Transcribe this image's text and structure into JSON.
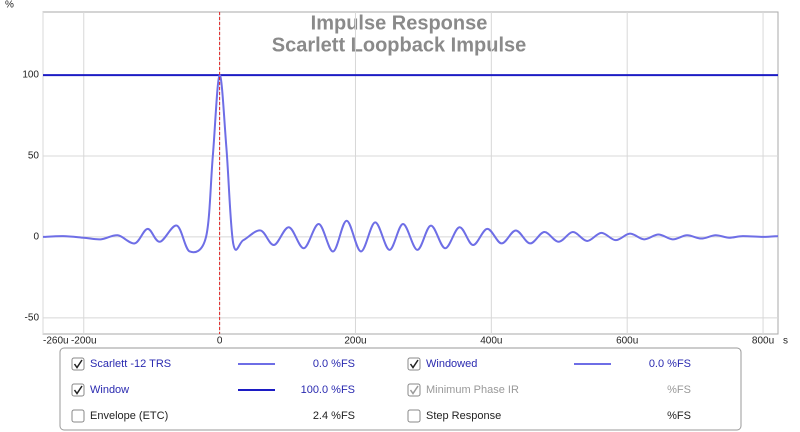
{
  "chart_data": {
    "type": "line",
    "title": "Impulse Response",
    "subtitle": "Scarlett Loopback Impulse",
    "xlabel": "s",
    "ylabel": "%",
    "xlim": [
      -260,
      822
    ],
    "ylim": [
      -60,
      139
    ],
    "xticks": [
      {
        "value": -260,
        "label": "-260u"
      },
      {
        "value": -200,
        "label": "-200u"
      },
      0,
      {
        "value": 200,
        "label": "200u"
      },
      {
        "value": 400,
        "label": "400u"
      },
      {
        "value": 600,
        "label": "600u"
      },
      {
        "value": 800,
        "label": "800u"
      }
    ],
    "yticks": [
      -50,
      0,
      50,
      100
    ],
    "grid": true,
    "reference_line_x": 0,
    "reference_line_color": "#e02020",
    "series": [
      {
        "name": "Scarlett -12 TRS",
        "color": "#6e6ee6",
        "checked": true,
        "reading": "0.0 %FS",
        "x": [
          -260,
          -230,
          -200,
          -175,
          -150,
          -125,
          -106,
          -88,
          -63,
          -44,
          -20,
          -10,
          0,
          10,
          20,
          35,
          60,
          80,
          102,
          124,
          146,
          167,
          187,
          208,
          229,
          250,
          270,
          291,
          311,
          332,
          353,
          373,
          394,
          415,
          436,
          457,
          478,
          499,
          520,
          541,
          562,
          583,
          604,
          625,
          646,
          667,
          688,
          709,
          730,
          750,
          770,
          800,
          822
        ],
        "values": [
          0,
          0.5,
          -0.5,
          -1.5,
          1,
          -4,
          5,
          -3,
          7,
          -9,
          0,
          50,
          100,
          55,
          -4,
          -2,
          4,
          -5,
          6,
          -7,
          8,
          -9,
          10,
          -9,
          9,
          -8,
          8,
          -8,
          7,
          -7,
          6,
          -5,
          5,
          -4,
          4,
          -4,
          3,
          -3,
          3,
          -2.5,
          2.5,
          -2,
          2,
          -1.5,
          1.5,
          -1.5,
          1,
          -1,
          1,
          -0.5,
          0.5,
          0,
          0.5
        ]
      },
      {
        "name": "Window",
        "color": "#1c1cc4",
        "checked": true,
        "reading": "100.0 %FS",
        "x": [
          -260,
          822
        ],
        "values": [
          100,
          100
        ]
      }
    ],
    "other_toggles": [
      {
        "label": "Windowed",
        "checked": true,
        "enabled": true,
        "color": "#6e6ee6",
        "reading": "0.0 %FS"
      },
      {
        "label": "Minimum Phase IR",
        "checked": true,
        "enabled": false,
        "reading": "%FS"
      },
      {
        "label": "Envelope (ETC)",
        "checked": false,
        "enabled": true,
        "reading": "2.4 %FS"
      },
      {
        "label": "Step Response",
        "checked": false,
        "enabled": true,
        "reading": "%FS"
      }
    ]
  }
}
